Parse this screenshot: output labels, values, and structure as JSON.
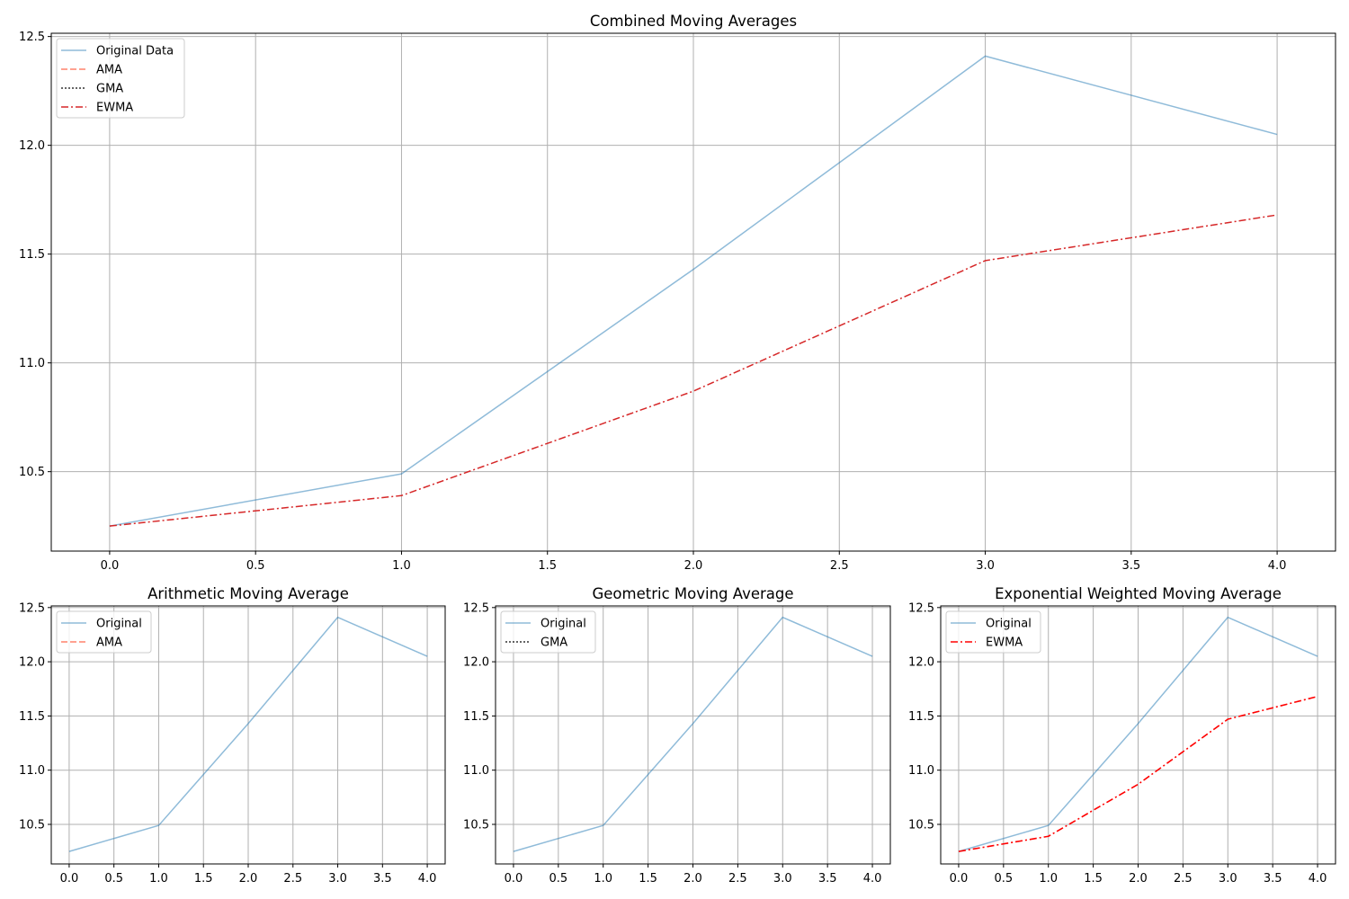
{
  "chart_data": [
    {
      "type": "line",
      "title": "Combined Moving Averages",
      "xlabel": "",
      "ylabel": "",
      "xlim": [
        -0.2,
        4.2
      ],
      "ylim": [
        10.135,
        12.515
      ],
      "xticks": [
        "0.0",
        "0.5",
        "1.0",
        "1.5",
        "2.0",
        "2.5",
        "3.0",
        "3.5",
        "4.0"
      ],
      "yticks": [
        "10.5",
        "11.0",
        "11.5",
        "12.0",
        "12.5"
      ],
      "grid": true,
      "legend": "top-left",
      "series": [
        {
          "name": "Original Data",
          "x": [
            0,
            1,
            2,
            3,
            4
          ],
          "values": [
            10.25,
            10.49,
            11.43,
            12.41,
            12.05
          ],
          "color": "#1f77b4",
          "alpha": 0.5,
          "dash": "solid"
        },
        {
          "name": "AMA",
          "x": [],
          "values": [],
          "color": "#ff6347",
          "alpha": 0.8,
          "dash": "dashed"
        },
        {
          "name": "GMA",
          "x": [],
          "values": [],
          "color": "#000000",
          "alpha": 0.8,
          "dash": "dotted"
        },
        {
          "name": "EWMA",
          "x": [
            0,
            1,
            2,
            3,
            4
          ],
          "values": [
            10.25,
            10.39,
            10.87,
            11.47,
            11.68
          ],
          "color": "#d62728",
          "alpha": 1,
          "dash": "dashdot"
        }
      ]
    },
    {
      "type": "line",
      "title": "Arithmetic Moving Average",
      "xlim": [
        -0.2,
        4.2
      ],
      "ylim": [
        10.135,
        12.515
      ],
      "xticks": [
        "0.0",
        "0.5",
        "1.0",
        "1.5",
        "2.0",
        "2.5",
        "3.0",
        "3.5",
        "4.0"
      ],
      "yticks": [
        "10.5",
        "11.0",
        "11.5",
        "12.0",
        "12.5"
      ],
      "grid": true,
      "legend": "top-left",
      "series": [
        {
          "name": "Original",
          "x": [
            0,
            1,
            2,
            3,
            4
          ],
          "values": [
            10.25,
            10.49,
            11.43,
            12.41,
            12.05
          ],
          "color": "#1f77b4",
          "alpha": 0.5,
          "dash": "solid"
        },
        {
          "name": "AMA",
          "x": [],
          "values": [],
          "color": "#ff6347",
          "alpha": 0.8,
          "dash": "dashed"
        }
      ]
    },
    {
      "type": "line",
      "title": "Geometric Moving Average",
      "xlim": [
        -0.2,
        4.2
      ],
      "ylim": [
        10.135,
        12.515
      ],
      "xticks": [
        "0.0",
        "0.5",
        "1.0",
        "1.5",
        "2.0",
        "2.5",
        "3.0",
        "3.5",
        "4.0"
      ],
      "yticks": [
        "10.5",
        "11.0",
        "11.5",
        "12.0",
        "12.5"
      ],
      "grid": true,
      "legend": "top-left",
      "series": [
        {
          "name": "Original",
          "x": [
            0,
            1,
            2,
            3,
            4
          ],
          "values": [
            10.25,
            10.49,
            11.43,
            12.41,
            12.05
          ],
          "color": "#1f77b4",
          "alpha": 0.5,
          "dash": "solid"
        },
        {
          "name": "GMA",
          "x": [],
          "values": [],
          "color": "#000000",
          "alpha": 0.8,
          "dash": "dotted"
        }
      ]
    },
    {
      "type": "line",
      "title": "Exponential Weighted Moving Average",
      "xlim": [
        -0.2,
        4.2
      ],
      "ylim": [
        10.135,
        12.515
      ],
      "xticks": [
        "0.0",
        "0.5",
        "1.0",
        "1.5",
        "2.0",
        "2.5",
        "3.0",
        "3.5",
        "4.0"
      ],
      "yticks": [
        "10.5",
        "11.0",
        "11.5",
        "12.0",
        "12.5"
      ],
      "grid": true,
      "legend": "top-left",
      "series": [
        {
          "name": "Original",
          "x": [
            0,
            1,
            2,
            3,
            4
          ],
          "values": [
            10.25,
            10.49,
            11.43,
            12.41,
            12.05
          ],
          "color": "#1f77b4",
          "alpha": 0.5,
          "dash": "solid"
        },
        {
          "name": "EWMA",
          "x": [
            0,
            1,
            2,
            3,
            4
          ],
          "values": [
            10.25,
            10.39,
            10.87,
            11.47,
            11.68
          ],
          "color": "#ff0000",
          "alpha": 1,
          "dash": "dashdot",
          "width": 1.6
        }
      ]
    }
  ]
}
